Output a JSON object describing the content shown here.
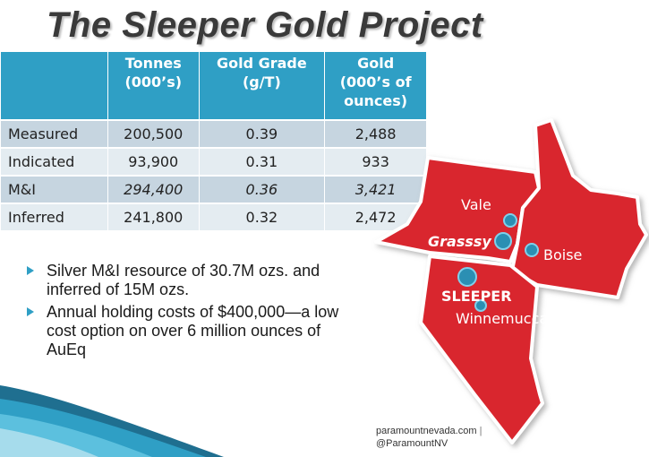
{
  "title": "The Sleeper Gold Project",
  "table": {
    "headers": [
      "",
      "Tonnes\n(000's)",
      "Gold Grade\n(g/T)",
      "Gold\n(000's of\nounces)"
    ],
    "header_lines": [
      [
        ""
      ],
      [
        "Tonnes",
        "(000’s)"
      ],
      [
        "Gold Grade",
        "(g/T)"
      ],
      [
        "Gold",
        "(000’s of",
        "ounces)"
      ]
    ],
    "rows": [
      {
        "label": "Measured",
        "tonnes": "200,500",
        "grade": "0.39",
        "gold": "2,488"
      },
      {
        "label": "Indicated",
        "tonnes": "93,900",
        "grade": "0.31",
        "gold": "933"
      },
      {
        "label": "M&I",
        "tonnes": "294,400",
        "grade": "0.36",
        "gold": "3,421"
      },
      {
        "label": "Inferred",
        "tonnes": "241,800",
        "grade": "0.32",
        "gold": "2,472"
      }
    ]
  },
  "bullets": [
    "Silver M&I resource of 30.7M ozs. and inferred of 15M ozs.",
    "Annual holding costs of $400,000—a low cost option on over 6 million ounces of AuEq"
  ],
  "map": {
    "labels": {
      "vale": "Vale",
      "grassy": "Grasssy",
      "boise": "Boise",
      "sleeper": "SLEEPER",
      "winnemucca": "Winnemucca"
    },
    "state_color": "#d9262f",
    "marker_color": "#2b8fb3"
  },
  "footer": {
    "site": "paramountnevada.com",
    "separator": "|",
    "handle": "@ParamountNV"
  },
  "colors": {
    "header_bg": "#2f9fc5",
    "row_dark": "#c6d5e0",
    "row_light": "#e4ecf1",
    "bullet_arrow": "#2f9fc5"
  }
}
